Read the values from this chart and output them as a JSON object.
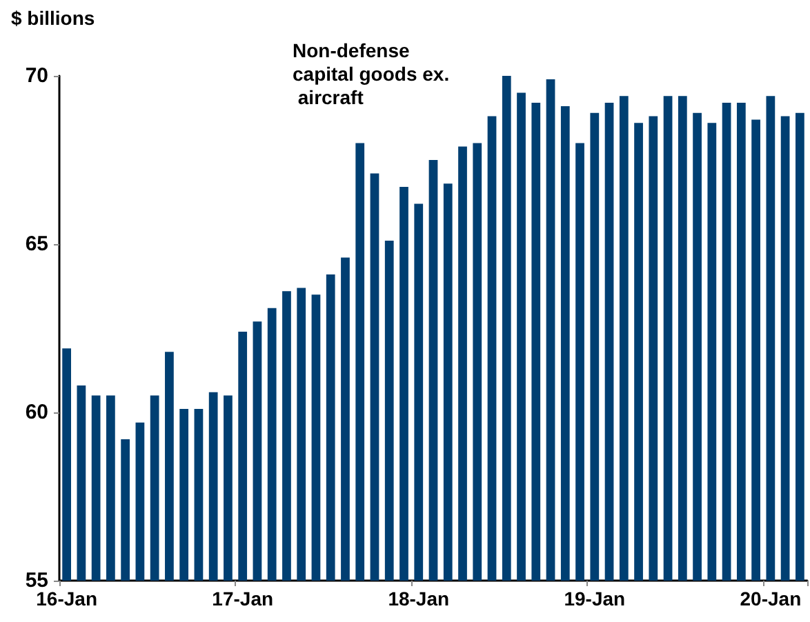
{
  "chart_data": {
    "type": "bar",
    "ylabel": "$ billions",
    "annotations": [
      "Non-defense capital goods ex. aircraft"
    ],
    "categories": [
      "16-Jan",
      null,
      null,
      null,
      null,
      null,
      null,
      null,
      null,
      null,
      null,
      null,
      "17-Jan",
      null,
      null,
      null,
      null,
      null,
      null,
      null,
      null,
      null,
      null,
      null,
      "18-Jan",
      null,
      null,
      null,
      null,
      null,
      null,
      null,
      null,
      null,
      null,
      null,
      "19-Jan",
      null,
      null,
      null,
      null,
      null,
      null,
      null,
      null,
      null,
      null,
      null,
      "20-Jan",
      null,
      null
    ],
    "values": [
      61.9,
      60.8,
      60.5,
      60.5,
      59.2,
      59.7,
      60.5,
      61.8,
      60.1,
      60.1,
      60.6,
      60.5,
      62.4,
      62.7,
      63.1,
      63.6,
      63.7,
      63.5,
      64.1,
      64.6,
      68.0,
      67.1,
      65.1,
      66.7,
      66.2,
      67.5,
      66.8,
      67.9,
      68.0,
      68.8,
      70.0,
      69.5,
      69.2,
      69.9,
      69.1,
      68.0,
      68.9,
      69.2,
      69.4,
      68.6,
      68.8,
      69.4,
      69.4,
      68.9,
      68.6,
      69.2,
      69.2,
      68.7,
      69.4,
      68.8,
      68.9
    ],
    "color": "#003f72",
    "ylim": [
      55,
      70
    ],
    "yticks": [
      55,
      60,
      65,
      70
    ],
    "grid": false
  }
}
